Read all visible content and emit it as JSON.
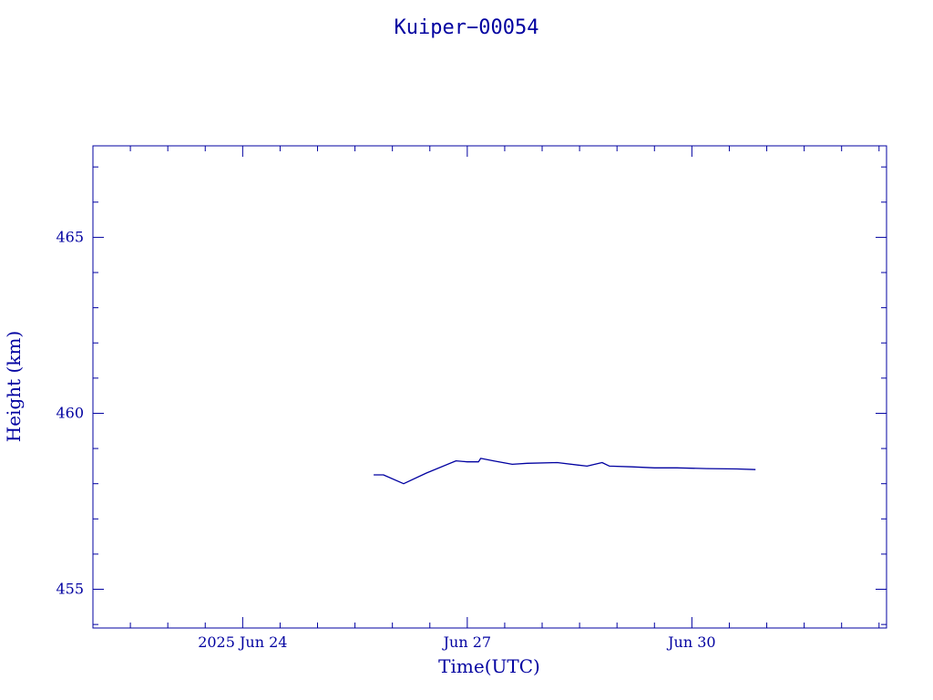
{
  "chart_data": {
    "type": "line",
    "title": "Kuiper−00054",
    "xlabel": "Time(UTC)",
    "ylabel": "Height (km)",
    "x_tick_labels": [
      {
        "day": 24,
        "label": "2025 Jun 24"
      },
      {
        "day": 27,
        "label": "Jun 27"
      },
      {
        "day": 30,
        "label": "Jun 30"
      }
    ],
    "x_unit": "days in June 2025 (UTC)",
    "xlim": [
      22.0,
      32.6
    ],
    "ylim": [
      453.9,
      467.6
    ],
    "y_ticks": [
      455,
      460,
      465
    ],
    "grid": false,
    "color": "#0000a0",
    "series": [
      {
        "x": [
          25.75,
          25.88,
          26.15,
          26.45,
          26.85,
          27.0,
          27.15,
          27.18,
          27.35,
          27.6,
          27.8,
          28.2,
          28.6,
          28.8,
          28.9,
          29.2,
          29.5,
          29.8,
          30.2,
          30.6,
          30.85
        ],
        "y": [
          458.25,
          458.25,
          458.0,
          458.3,
          458.65,
          458.62,
          458.62,
          458.72,
          458.65,
          458.55,
          458.58,
          458.6,
          458.5,
          458.6,
          458.5,
          458.48,
          458.45,
          458.45,
          458.43,
          458.42,
          458.4
        ]
      }
    ]
  }
}
